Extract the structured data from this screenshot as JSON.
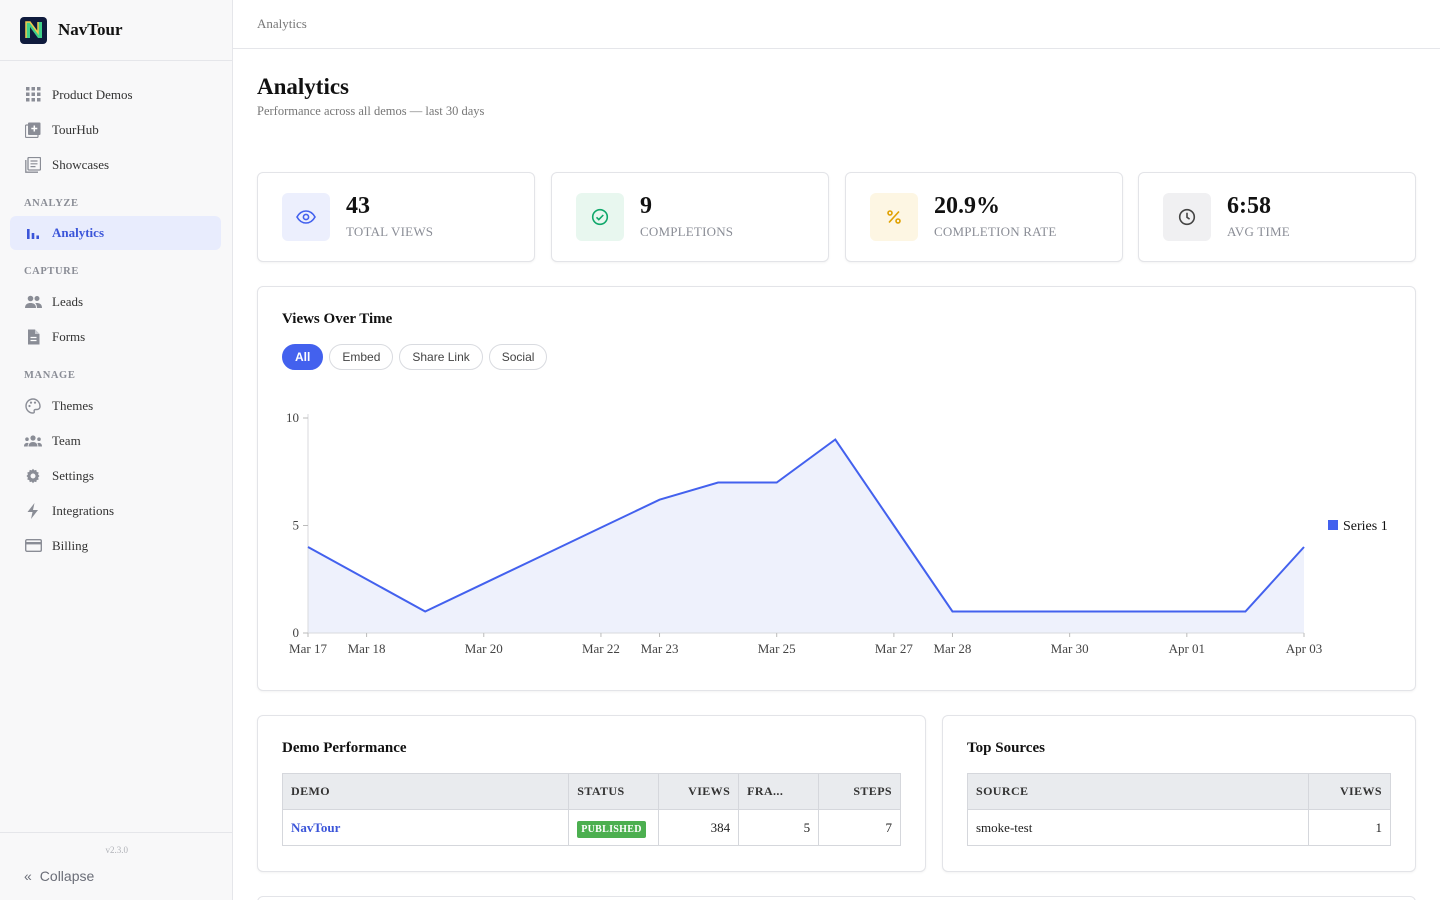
{
  "app": {
    "name": "NavTour",
    "version": "v2.3.0"
  },
  "breadcrumb": "Analytics",
  "sidebar": {
    "top_items": [
      {
        "label": "Product Demos",
        "icon": "grid-icon"
      },
      {
        "label": "TourHub",
        "icon": "add-box-icon"
      },
      {
        "label": "Showcases",
        "icon": "library-icon"
      }
    ],
    "sections": [
      {
        "label": "ANALYZE",
        "items": [
          {
            "label": "Analytics",
            "icon": "bar-chart-icon",
            "active": true
          }
        ]
      },
      {
        "label": "CAPTURE",
        "items": [
          {
            "label": "Leads",
            "icon": "people-icon"
          },
          {
            "label": "Forms",
            "icon": "document-icon"
          }
        ]
      },
      {
        "label": "MANAGE",
        "items": [
          {
            "label": "Themes",
            "icon": "palette-icon"
          },
          {
            "label": "Team",
            "icon": "groups-icon"
          },
          {
            "label": "Settings",
            "icon": "gear-icon"
          },
          {
            "label": "Integrations",
            "icon": "bolt-icon"
          },
          {
            "label": "Billing",
            "icon": "credit-card-icon"
          }
        ]
      }
    ],
    "collapse_label": "Collapse"
  },
  "page": {
    "title": "Analytics",
    "subtitle": "Performance across all demos — last 30 days"
  },
  "stats": [
    {
      "value": "43",
      "label": "TOTAL VIEWS",
      "icon": "eye-icon",
      "color": "#4361ee",
      "bg": "#eceffd"
    },
    {
      "value": "9",
      "label": "COMPLETIONS",
      "icon": "check-circle-icon",
      "color": "#10a86b",
      "bg": "#e8f7ef"
    },
    {
      "value": "20.9%",
      "label": "COMPLETION RATE",
      "icon": "percent-icon",
      "color": "#e0a100",
      "bg": "#fdf6e3"
    },
    {
      "value": "6:58",
      "label": "AVG TIME",
      "icon": "clock-icon",
      "color": "#444444",
      "bg": "#f0f0f2"
    }
  ],
  "views_chart": {
    "title": "Views Over Time",
    "filters": [
      "All",
      "Embed",
      "Share Link",
      "Social"
    ],
    "active_filter": "All"
  },
  "chart_data": {
    "type": "area",
    "x": [
      "Mar 17",
      "Mar 18",
      "Mar 19",
      "Mar 20",
      "Mar 21",
      "Mar 22",
      "Mar 23",
      "Mar 24",
      "Mar 25",
      "Mar 26",
      "Mar 27",
      "Mar 28",
      "Mar 29",
      "Mar 30",
      "Mar 31",
      "Apr 01",
      "Apr 02",
      "Apr 03"
    ],
    "x_tick_labels": [
      "Mar 17",
      "Mar 18",
      "Mar 20",
      "Mar 22",
      "Mar 23",
      "Mar 25",
      "Mar 27",
      "Mar 28",
      "Mar 30",
      "Apr 01",
      "Apr 03"
    ],
    "series": [
      {
        "name": "Series 1",
        "values": [
          4,
          2.5,
          1,
          2.3,
          3.6,
          4.9,
          6.2,
          7,
          7,
          9,
          5,
          1,
          1,
          1,
          1,
          1,
          1,
          4
        ],
        "color": "#4361ee"
      }
    ],
    "ylim": [
      0,
      10
    ],
    "y_ticks": [
      0,
      5,
      10
    ],
    "legend": "right",
    "grid": false
  },
  "demo_performance": {
    "title": "Demo Performance",
    "columns": [
      "DEMO",
      "STATUS",
      "VIEWS",
      "FRA...",
      "STEPS"
    ],
    "rows": [
      {
        "demo": "NavTour",
        "status": "PUBLISHED",
        "views": "384",
        "frames": "5",
        "steps": "7"
      }
    ]
  },
  "top_sources": {
    "title": "Top Sources",
    "columns": [
      "SOURCE",
      "VIEWS"
    ],
    "rows": [
      {
        "source": "smoke-test",
        "views": "1"
      }
    ]
  }
}
